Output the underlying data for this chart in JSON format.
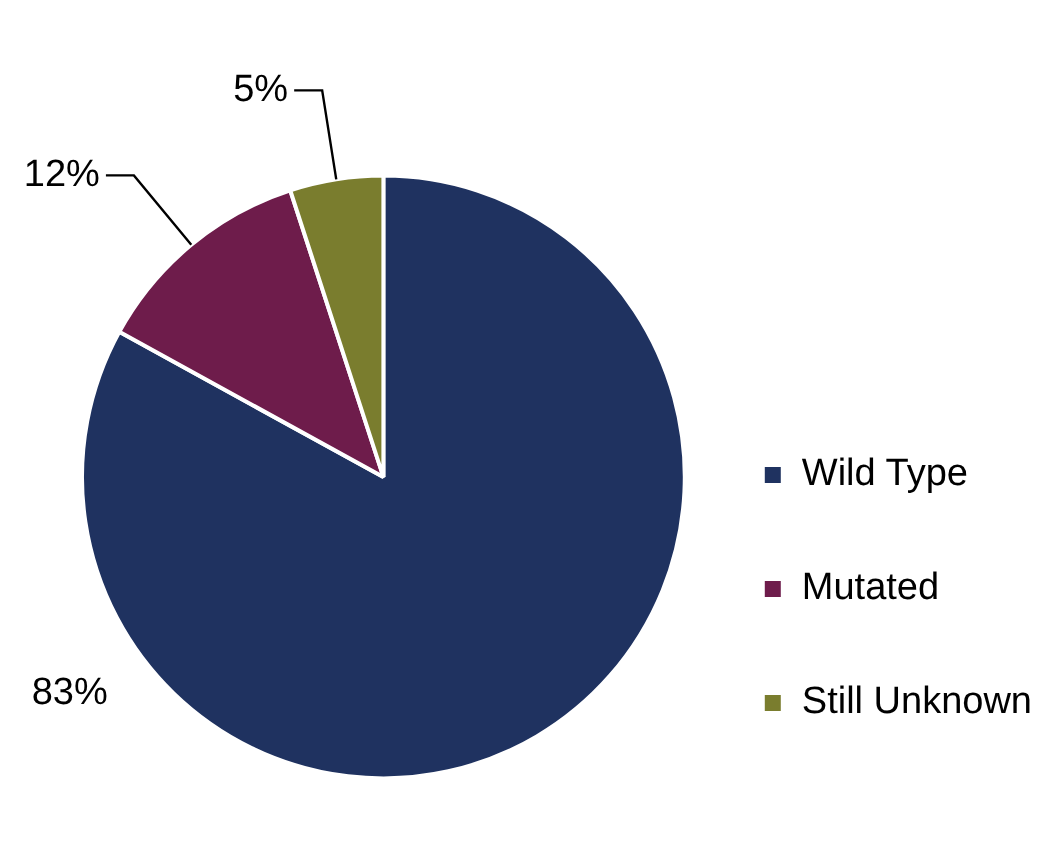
{
  "chart_data": {
    "type": "pie",
    "categories": [
      "Wild Type",
      "Mutated",
      "Still Unknown"
    ],
    "values": [
      83,
      12,
      5
    ],
    "colors": [
      "#1f3260",
      "#6e1c4b",
      "#7a7d2e"
    ],
    "legend": "bottom right",
    "value_labels": [
      "83%",
      "12%",
      "5%"
    ]
  }
}
